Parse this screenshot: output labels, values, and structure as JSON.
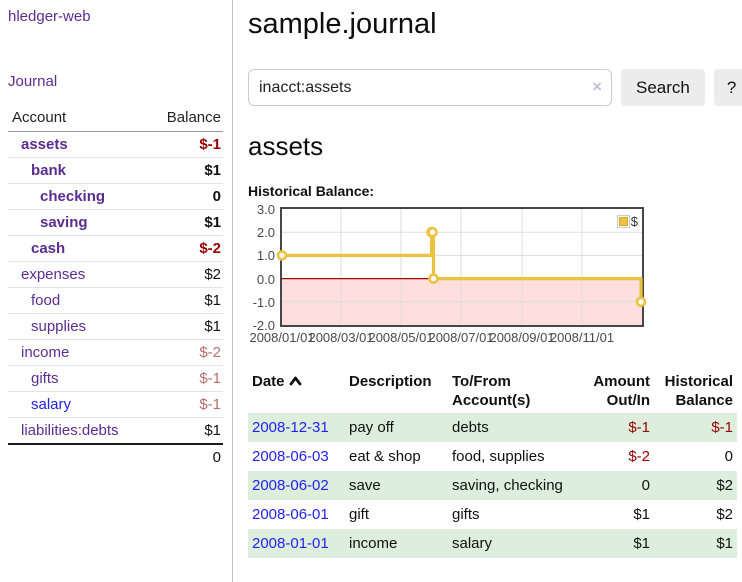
{
  "app": {
    "title": "hledger-web"
  },
  "colors": {
    "link_purple": "#5b2d91",
    "link_blue": "#2222ee",
    "negative_strong": "#990000",
    "negative_muted": "#b86e6e",
    "row_shade_green": "#ddeedd",
    "series_gold": "#edc240"
  },
  "sidebar": {
    "journal_link": "Journal",
    "accounts_header": {
      "account": "Account",
      "balance": "Balance"
    },
    "accounts": [
      {
        "label": "assets",
        "indent": 1,
        "bold": true,
        "blue": false,
        "balance": "$-1",
        "balance_class": "neg"
      },
      {
        "label": "bank",
        "indent": 2,
        "bold": true,
        "blue": false,
        "balance": "$1",
        "balance_class": ""
      },
      {
        "label": "checking",
        "indent": 3,
        "bold": true,
        "blue": false,
        "balance": "0",
        "balance_class": ""
      },
      {
        "label": "saving",
        "indent": 3,
        "bold": true,
        "blue": false,
        "balance": "$1",
        "balance_class": ""
      },
      {
        "label": "cash",
        "indent": 2,
        "bold": true,
        "blue": false,
        "balance": "$-2",
        "balance_class": "neg"
      },
      {
        "label": "expenses",
        "indent": 1,
        "bold": false,
        "blue": false,
        "balance": "$2",
        "balance_class": ""
      },
      {
        "label": "food",
        "indent": 2,
        "bold": false,
        "blue": false,
        "balance": "$1",
        "balance_class": ""
      },
      {
        "label": "supplies",
        "indent": 2,
        "bold": false,
        "blue": false,
        "balance": "$1",
        "balance_class": ""
      },
      {
        "label": "income",
        "indent": 1,
        "bold": false,
        "blue": false,
        "balance": "$-2",
        "balance_class": "neg-muted"
      },
      {
        "label": "gifts",
        "indent": 2,
        "bold": false,
        "blue": false,
        "balance": "$-1",
        "balance_class": "neg-muted"
      },
      {
        "label": "salary",
        "indent": 2,
        "bold": false,
        "blue": true,
        "balance": "$-1",
        "balance_class": "neg-muted"
      },
      {
        "label": "liabilities:debts",
        "indent": 1,
        "bold": false,
        "blue": false,
        "balance": "$1",
        "balance_class": ""
      }
    ],
    "total": "0"
  },
  "main": {
    "title": "sample.journal",
    "search": {
      "value": "inacct:assets",
      "clear_label": "×",
      "search_button": "Search",
      "help_button": "?"
    },
    "account_heading": "assets",
    "chart_label": "Historical Balance:"
  },
  "chart_data": {
    "type": "line",
    "style": "step-with-markers",
    "title": "Historical Balance",
    "legend": [
      {
        "name": "$",
        "color": "#edc240"
      }
    ],
    "legend_position": "top-right",
    "grid": true,
    "x_range": [
      "2008-01-01",
      "2009-01-01"
    ],
    "ylim": [
      -2.0,
      3.0
    ],
    "yticks": [
      3.0,
      2.0,
      1.0,
      0.0,
      -1.0,
      -2.0
    ],
    "xticks": [
      "2008/01/01",
      "2008/03/01",
      "2008/05/01",
      "2008/07/01",
      "2008/09/01",
      "2008/11/01"
    ],
    "points": [
      [
        "2008-01-01",
        1
      ],
      [
        "2008-06-01",
        2
      ],
      [
        "2008-06-02",
        2
      ],
      [
        "2008-06-03",
        0
      ],
      [
        "2008-12-31",
        -1
      ]
    ],
    "colors": {
      "series": "#edc240",
      "zero_line": "#a40000",
      "below_zero_fill": "#ffdede",
      "grid": "#dddddd"
    }
  },
  "register": {
    "headers": {
      "date": "Date",
      "description": "Description",
      "accounts": "To/From Account(s)",
      "amount": "Amount Out/In",
      "balance": "Historical Balance"
    },
    "rows": [
      {
        "date": "2008-12-31",
        "description": "pay off",
        "accounts": "debts",
        "amount": "$-1",
        "amount_neg": true,
        "balance": "$-1",
        "balance_neg": true,
        "shade": true
      },
      {
        "date": "2008-06-03",
        "description": "eat & shop",
        "accounts": "food, supplies",
        "amount": "$-2",
        "amount_neg": true,
        "balance": "0",
        "balance_neg": false,
        "shade": false
      },
      {
        "date": "2008-06-02",
        "description": "save",
        "accounts": "saving, checking",
        "amount": "0",
        "amount_neg": false,
        "balance": "$2",
        "balance_neg": false,
        "shade": true
      },
      {
        "date": "2008-06-01",
        "description": "gift",
        "accounts": "gifts",
        "amount": "$1",
        "amount_neg": false,
        "balance": "$2",
        "balance_neg": false,
        "shade": false
      },
      {
        "date": "2008-01-01",
        "description": "income",
        "accounts": "salary",
        "amount": "$1",
        "amount_neg": false,
        "balance": "$1",
        "balance_neg": false,
        "shade": true
      }
    ]
  }
}
